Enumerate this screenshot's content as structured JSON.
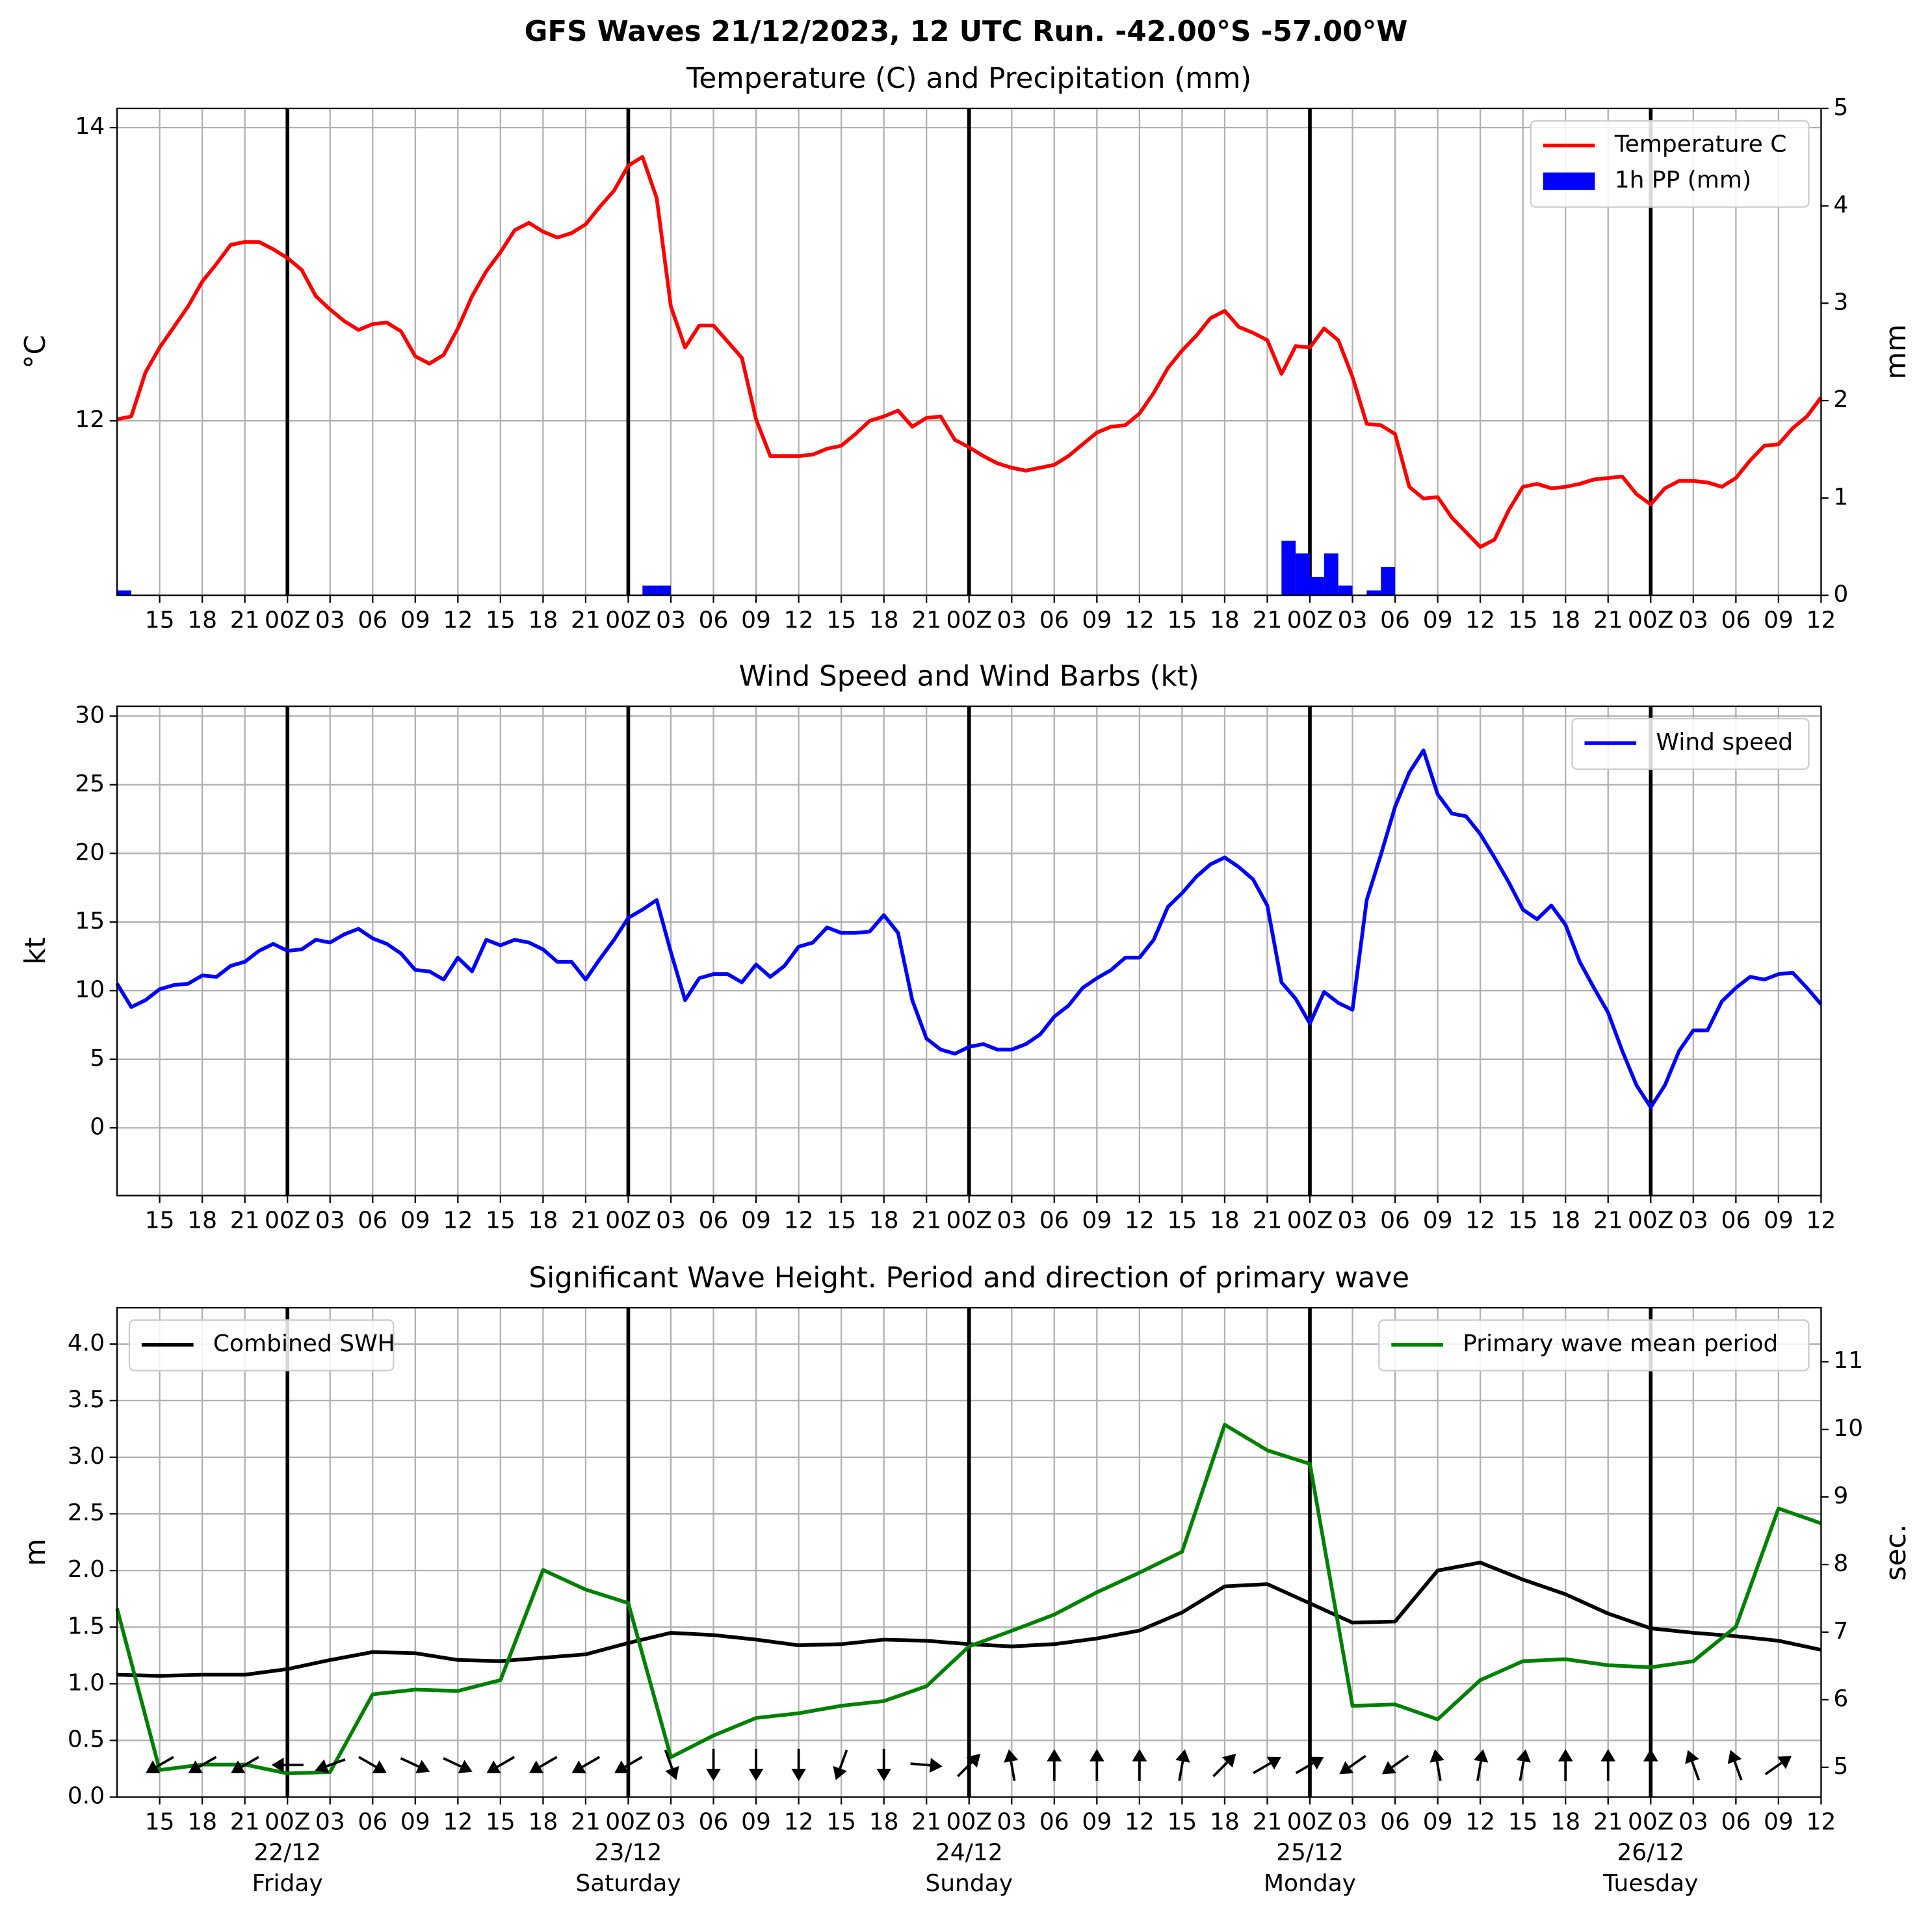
{
  "title": "GFS Waves 21/12/2023, 12 UTC Run. -42.00°S -57.00°W",
  "chart_data": [
    {
      "type": "line",
      "title": "Temperature (C) and Precipitation (mm)",
      "ylabel": "°C",
      "y2label": "mm",
      "categories": [
        null,
        null,
        null,
        "15",
        null,
        null,
        "18",
        null,
        null,
        "21",
        null,
        null,
        "00Z",
        null,
        null,
        "03",
        null,
        null,
        "06",
        null,
        null,
        "09",
        null,
        null,
        "12",
        null,
        null,
        "15",
        null,
        null,
        "18",
        null,
        null,
        "21",
        null,
        null,
        "00Z",
        null,
        null,
        "03",
        null,
        null,
        "06",
        null,
        null,
        "09",
        null,
        null,
        "12",
        null,
        null,
        "15",
        null,
        null,
        "18",
        null,
        null,
        "21",
        null,
        null,
        "00Z",
        null,
        null,
        "03",
        null,
        null,
        "06",
        null,
        null,
        "09",
        null,
        null,
        "12",
        null,
        null,
        "15",
        null,
        null,
        "18",
        null,
        null,
        "21",
        null,
        null,
        "00Z",
        null,
        null,
        "03",
        null,
        null,
        "06",
        null,
        null,
        "09",
        null,
        null,
        "12",
        null,
        null,
        "15",
        null,
        null,
        "18",
        null,
        null,
        "21",
        null,
        null,
        "00Z",
        null,
        null,
        "03",
        null,
        null,
        "06",
        null,
        null,
        "09",
        null,
        null,
        "12"
      ],
      "ylim": [
        10.81,
        14.13
      ],
      "yticks": [
        12,
        14
      ],
      "y2lim": [
        0,
        5
      ],
      "y2ticks": [
        0,
        1,
        2,
        3,
        4,
        5
      ],
      "grid": true,
      "legend": "upper right",
      "series": [
        {
          "name": "Temperature C",
          "type": "line",
          "color": "#ff0000",
          "values": [
            12.01,
            12.03,
            12.33,
            12.5,
            12.64,
            12.78,
            12.95,
            13.07,
            13.2,
            13.22,
            13.22,
            13.17,
            13.11,
            13.03,
            12.85,
            12.76,
            12.68,
            12.62,
            12.66,
            12.67,
            12.61,
            12.44,
            12.39,
            12.45,
            12.63,
            12.85,
            13.02,
            13.15,
            13.3,
            13.35,
            13.29,
            13.25,
            13.28,
            13.34,
            13.46,
            13.57,
            13.74,
            13.8,
            13.52,
            12.78,
            12.5,
            12.65,
            12.65,
            12.54,
            12.43,
            12.01,
            11.76,
            11.76,
            11.76,
            11.77,
            11.81,
            11.83,
            11.91,
            12.0,
            12.03,
            12.07,
            11.96,
            12.02,
            12.03,
            11.87,
            11.82,
            11.76,
            11.71,
            11.68,
            11.66,
            11.68,
            11.7,
            11.76,
            11.84,
            11.92,
            11.96,
            11.97,
            12.05,
            12.19,
            12.36,
            12.48,
            12.58,
            12.7,
            12.75,
            12.64,
            12.6,
            12.55,
            12.32,
            12.51,
            12.5,
            12.63,
            12.55,
            12.3,
            11.98,
            11.97,
            11.91,
            11.55,
            11.47,
            11.48,
            11.34,
            11.24,
            11.14,
            11.19,
            11.39,
            11.55,
            11.57,
            11.54,
            11.55,
            11.57,
            11.6,
            11.61,
            11.62,
            11.5,
            11.43,
            11.54,
            11.59,
            11.59,
            11.58,
            11.55,
            11.61,
            11.73,
            11.83,
            11.84,
            11.95,
            12.03,
            12.16
          ]
        },
        {
          "name": "1h PP (mm)",
          "type": "bar",
          "axis": "y2",
          "color": "#0000ff",
          "values": [
            0.05,
            0,
            0,
            0,
            0,
            0,
            0,
            0,
            0,
            0,
            0,
            0,
            0,
            0,
            0,
            0,
            0,
            0,
            0,
            0,
            0,
            0,
            0,
            0,
            0,
            0,
            0,
            0,
            0,
            0,
            0,
            0,
            0,
            0,
            0,
            0,
            0,
            0.1,
            0.1,
            0,
            0,
            0,
            0,
            0,
            0,
            0,
            0,
            0,
            0,
            0,
            0,
            0,
            0,
            0,
            0,
            0,
            0,
            0,
            0,
            0,
            0,
            0,
            0,
            0,
            0,
            0,
            0,
            0,
            0,
            0,
            0,
            0,
            0,
            0,
            0,
            0,
            0,
            0,
            0,
            0,
            0,
            0,
            0.56,
            0.43,
            0.19,
            0.43,
            0.1,
            0,
            0.05,
            0.29,
            0,
            0,
            0,
            0,
            0,
            0,
            0,
            0,
            0,
            0,
            0,
            0,
            0,
            0,
            0,
            0,
            0,
            0,
            0,
            0,
            0,
            0,
            0,
            0,
            0,
            0,
            0,
            0,
            0,
            0,
            0
          ]
        }
      ]
    },
    {
      "type": "line",
      "title": "Wind Speed and Wind Barbs (kt)",
      "ylabel": "kt",
      "categories": [
        null,
        null,
        null,
        "15",
        null,
        null,
        "18",
        null,
        null,
        "21",
        null,
        null,
        "00Z",
        null,
        null,
        "03",
        null,
        null,
        "06",
        null,
        null,
        "09",
        null,
        null,
        "12",
        null,
        null,
        "15",
        null,
        null,
        "18",
        null,
        null,
        "21",
        null,
        null,
        "00Z",
        null,
        null,
        "03",
        null,
        null,
        "06",
        null,
        null,
        "09",
        null,
        null,
        "12",
        null,
        null,
        "15",
        null,
        null,
        "18",
        null,
        null,
        "21",
        null,
        null,
        "00Z",
        null,
        null,
        "03",
        null,
        null,
        "06",
        null,
        null,
        "09",
        null,
        null,
        "12",
        null,
        null,
        "15",
        null,
        null,
        "18",
        null,
        null,
        "21",
        null,
        null,
        "00Z",
        null,
        null,
        "03",
        null,
        null,
        "06",
        null,
        null,
        "09",
        null,
        null,
        "12",
        null,
        null,
        "15",
        null,
        null,
        "18",
        null,
        null,
        "21",
        null,
        null,
        "00Z",
        null,
        null,
        "03",
        null,
        null,
        "06",
        null,
        null,
        "09",
        null,
        null,
        "12"
      ],
      "ylim": [
        -4.94,
        30.72
      ],
      "yticks": [
        0,
        5,
        10,
        15,
        20,
        25,
        30
      ],
      "grid": true,
      "legend": "upper right",
      "series": [
        {
          "name": "Wind speed",
          "type": "line",
          "color": "#0000ff",
          "values": [
            10.5,
            8.8,
            9.3,
            10.1,
            10.4,
            10.5,
            11.1,
            11.0,
            11.8,
            12.1,
            12.9,
            13.4,
            12.9,
            13.0,
            13.7,
            13.5,
            14.1,
            14.5,
            13.8,
            13.4,
            12.7,
            11.5,
            11.4,
            10.8,
            12.4,
            11.4,
            13.7,
            13.3,
            13.7,
            13.5,
            13.0,
            12.1,
            12.1,
            10.8,
            12.3,
            13.7,
            15.3,
            15.9,
            16.6,
            12.8,
            9.3,
            10.9,
            11.2,
            11.2,
            10.6,
            11.9,
            11.0,
            11.8,
            13.2,
            13.5,
            14.6,
            14.2,
            14.2,
            14.3,
            15.5,
            14.2,
            9.3,
            6.5,
            5.7,
            5.4,
            5.9,
            6.1,
            5.7,
            5.7,
            6.1,
            6.8,
            8.1,
            8.9,
            10.2,
            10.9,
            11.5,
            12.4,
            12.4,
            13.7,
            16.1,
            17.1,
            18.3,
            19.2,
            19.7,
            19.0,
            18.1,
            16.2,
            10.6,
            9.4,
            7.6,
            9.9,
            9.1,
            8.6,
            16.6,
            19.9,
            23.4,
            25.9,
            27.5,
            24.3,
            22.9,
            22.7,
            21.4,
            19.7,
            17.9,
            15.9,
            15.2,
            16.2,
            14.8,
            12.1,
            10.2,
            8.4,
            5.6,
            3.1,
            1.5,
            3.1,
            5.6,
            7.1,
            7.1,
            9.2,
            10.2,
            11.0,
            10.8,
            11.2,
            11.3,
            10.2,
            9.0
          ]
        }
      ]
    },
    {
      "type": "line",
      "title": "Significant Wave Height. Period and direction of primary wave",
      "ylabel": "m",
      "y2label": "sec.",
      "y2color": "#008000",
      "categories": [
        null,
        "15",
        "18",
        "21",
        "00Z",
        "03",
        "06",
        "09",
        "12",
        "15",
        "18",
        "21",
        "00Z",
        "03",
        "06",
        "09",
        "12",
        "15",
        "18",
        "21",
        "00Z",
        "03",
        "06",
        "09",
        "12",
        "15",
        "18",
        "21",
        "00Z",
        "03",
        "06",
        "09",
        "12",
        "15",
        "18",
        "21",
        "00Z",
        "03",
        "06",
        "09",
        "12"
      ],
      "dates": [
        "22/12",
        "23/12",
        "24/12",
        "25/12",
        "26/12"
      ],
      "weekdays": [
        "Friday",
        "Saturday",
        "Sunday",
        "Monday",
        "Tuesday"
      ],
      "ylim": [
        0,
        4.32
      ],
      "yticks": [
        {
          "value": 0,
          "label": "0.0"
        },
        0.5,
        {
          "value": 1,
          "label": "1.0"
        },
        1.5,
        {
          "value": 2,
          "label": "2.0"
        },
        2.5,
        {
          "value": 3,
          "label": "3.0"
        },
        3.5,
        {
          "value": 4,
          "label": "4.0"
        }
      ],
      "y2lim": [
        4.56,
        11.8
      ],
      "y2ticks": [
        5,
        6,
        7,
        8,
        9,
        10,
        11
      ],
      "grid": true,
      "series": [
        {
          "name": "Combined SWH",
          "type": "line",
          "color": "#000000",
          "legend": "upper left",
          "values": [
            1.08,
            1.07,
            1.08,
            1.08,
            1.13,
            1.21,
            1.28,
            1.27,
            1.21,
            1.2,
            1.23,
            1.26,
            1.36,
            1.45,
            1.43,
            1.39,
            1.34,
            1.35,
            1.39,
            1.38,
            1.35,
            1.33,
            1.35,
            1.4,
            1.47,
            1.63,
            1.86,
            1.88,
            1.71,
            1.54,
            1.55,
            2.0,
            2.07,
            1.92,
            1.79,
            1.62,
            1.49,
            1.45,
            1.42,
            1.38,
            1.3
          ]
        },
        {
          "name": "Primary wave mean period",
          "type": "line",
          "axis": "y2",
          "color": "#008000",
          "legend": "upper right",
          "values": [
            7.35,
            4.96,
            5.04,
            5.04,
            4.91,
            4.93,
            6.08,
            6.15,
            6.13,
            6.29,
            7.92,
            7.63,
            7.43,
            5.15,
            5.47,
            5.73,
            5.8,
            5.91,
            5.98,
            6.2,
            6.79,
            7.02,
            7.26,
            7.59,
            7.88,
            8.19,
            10.07,
            9.69,
            9.49,
            5.91,
            5.93,
            5.71,
            6.29,
            6.57,
            6.6,
            6.51,
            6.48,
            6.57,
            7.08,
            8.83,
            8.61
          ]
        }
      ],
      "directions": [
        null,
        240,
        240,
        240,
        270,
        250,
        120,
        115,
        115,
        240,
        240,
        240,
        240,
        160,
        180,
        180,
        180,
        200,
        180,
        95,
        45,
        350,
        0,
        0,
        0,
        10,
        45,
        60,
        60,
        235,
        235,
        350,
        10,
        10,
        0,
        0,
        0,
        340,
        340,
        55,
        null
      ]
    }
  ]
}
